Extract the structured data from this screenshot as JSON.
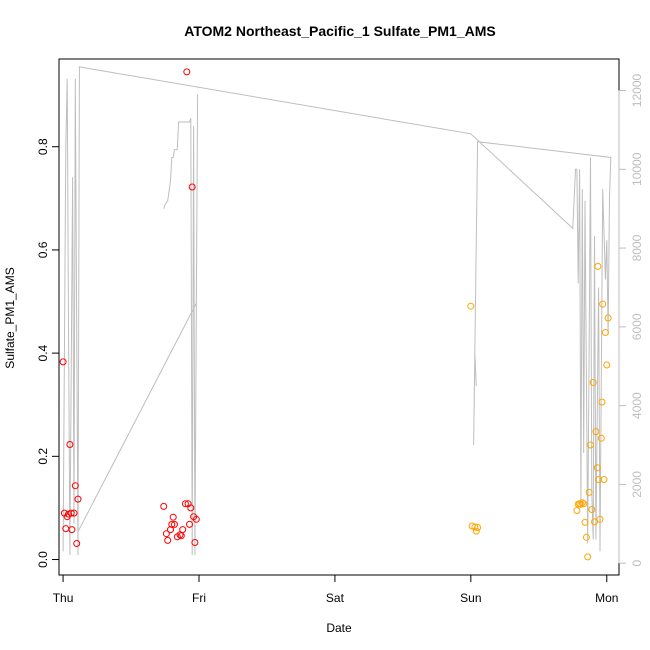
{
  "chart_data": {
    "type": "scatter",
    "title": "ATOM2 Northeast_Pacific_1 Sulfate_PM1_AMS",
    "xlabel": "Date",
    "ylabel": "Sulfate_PM1_AMS",
    "xlim": [
      -0.03,
      4.09
    ],
    "ylim": [
      -0.03,
      0.97
    ],
    "x_ticks": [
      {
        "value": 0,
        "label": "Thu"
      },
      {
        "value": 1,
        "label": "Fri"
      },
      {
        "value": 2,
        "label": "Sat"
      },
      {
        "value": 3,
        "label": "Sun"
      },
      {
        "value": 4,
        "label": "Mon"
      }
    ],
    "y_ticks": [
      0.0,
      0.2,
      0.4,
      0.6,
      0.8
    ],
    "y_tick_labels": [
      "0.0",
      "0.2",
      "0.4",
      "0.6",
      "0.8"
    ],
    "right_axis": {
      "ylim": [
        -300,
        12800
      ],
      "ticks": [
        0,
        2000,
        4000,
        6000,
        8000,
        10000,
        12000
      ],
      "tick_labels": [
        "0",
        "2000",
        "4000",
        "6000",
        "8000",
        "10000",
        "12000"
      ],
      "color": "#bebebe"
    },
    "series": [
      {
        "color": "#ff0000",
        "marker": "open-circle",
        "points": [
          [
            0.0,
            0.383
          ],
          [
            0.01,
            0.09
          ],
          [
            0.02,
            0.06
          ],
          [
            0.03,
            0.083
          ],
          [
            0.04,
            0.088
          ],
          [
            0.05,
            0.223
          ],
          [
            0.06,
            0.09
          ],
          [
            0.065,
            0.058
          ],
          [
            0.08,
            0.09
          ],
          [
            0.09,
            0.143
          ],
          [
            0.1,
            0.031
          ],
          [
            0.11,
            0.117
          ],
          [
            0.74,
            0.103
          ],
          [
            0.76,
            0.05
          ],
          [
            0.77,
            0.037
          ],
          [
            0.79,
            0.058
          ],
          [
            0.8,
            0.068
          ],
          [
            0.81,
            0.082
          ],
          [
            0.82,
            0.068
          ],
          [
            0.84,
            0.044
          ],
          [
            0.86,
            0.048
          ],
          [
            0.87,
            0.046
          ],
          [
            0.88,
            0.058
          ],
          [
            0.9,
            0.108
          ],
          [
            0.91,
            0.945
          ],
          [
            0.92,
            0.108
          ],
          [
            0.93,
            0.068
          ],
          [
            0.94,
            0.1
          ],
          [
            0.95,
            0.722
          ],
          [
            0.96,
            0.083
          ],
          [
            0.97,
            0.033
          ],
          [
            0.98,
            0.078
          ]
        ]
      },
      {
        "color": "#ffa500",
        "marker": "open-circle",
        "points": [
          [
            3.0,
            0.491
          ],
          [
            3.01,
            0.065
          ],
          [
            3.03,
            0.063
          ],
          [
            3.04,
            0.055
          ],
          [
            3.05,
            0.062
          ],
          [
            3.78,
            0.095
          ],
          [
            3.79,
            0.107
          ],
          [
            3.8,
            0.108
          ],
          [
            3.81,
            0.107
          ],
          [
            3.82,
            0.11
          ],
          [
            3.83,
            0.108
          ],
          [
            3.84,
            0.072
          ],
          [
            3.85,
            0.043
          ],
          [
            3.86,
            0.005
          ],
          [
            3.87,
            0.13
          ],
          [
            3.88,
            0.222
          ],
          [
            3.89,
            0.097
          ],
          [
            3.9,
            0.343
          ],
          [
            3.91,
            0.073
          ],
          [
            3.92,
            0.248
          ],
          [
            3.93,
            0.178
          ],
          [
            3.935,
            0.568
          ],
          [
            3.94,
            0.155
          ],
          [
            3.95,
            0.078
          ],
          [
            3.96,
            0.235
          ],
          [
            3.965,
            0.305
          ],
          [
            3.97,
            0.495
          ],
          [
            3.98,
            0.155
          ],
          [
            3.99,
            0.44
          ],
          [
            4.0,
            0.377
          ],
          [
            4.01,
            0.468
          ]
        ]
      },
      {
        "type": "line",
        "axis": "right",
        "color": "#bebebe",
        "points": [
          [
            0.0,
            300
          ],
          [
            0.02,
            10600
          ],
          [
            0.03,
            12300
          ],
          [
            0.04,
            6000
          ],
          [
            0.05,
            200
          ],
          [
            0.07,
            9800
          ],
          [
            0.08,
            1000
          ],
          [
            0.09,
            12300
          ],
          [
            0.11,
            200
          ],
          [
            0.12,
            12600
          ],
          [
            3.0,
            10900
          ],
          [
            3.75,
            8500
          ],
          [
            3.77,
            10000
          ],
          [
            3.78,
            10000
          ],
          [
            3.79,
            7100
          ],
          [
            3.8,
            10000
          ],
          [
            3.81,
            1500
          ],
          [
            3.82,
            9500
          ],
          [
            3.83,
            2800
          ],
          [
            3.84,
            9200
          ],
          [
            3.86,
            500
          ],
          [
            3.88,
            10300
          ],
          [
            3.89,
            1800
          ],
          [
            3.9,
            600
          ],
          [
            3.91,
            8300
          ],
          [
            3.92,
            600
          ],
          [
            3.94,
            7000
          ],
          [
            3.95,
            300
          ],
          [
            3.97,
            9500
          ],
          [
            3.99,
            7200
          ],
          [
            4.0,
            8200
          ],
          [
            4.01,
            5800
          ],
          [
            4.02,
            9300
          ],
          [
            4.03,
            10300
          ],
          [
            3.05,
            10700
          ],
          [
            3.02,
            3000
          ],
          [
            3.03,
            5300
          ],
          [
            3.04,
            4500
          ]
        ]
      },
      {
        "type": "line",
        "axis": "right",
        "color": "#bebebe",
        "points": [
          [
            0.11,
            800
          ],
          [
            0.98,
            6600
          ],
          [
            0.99,
            11900
          ],
          [
            0.97,
            200
          ],
          [
            0.96,
            11100
          ],
          [
            0.95,
            200
          ],
          [
            0.94,
            11300
          ],
          [
            0.93,
            11200
          ],
          [
            0.9,
            11200
          ],
          [
            0.85,
            11200
          ],
          [
            0.84,
            10500
          ],
          [
            0.82,
            10500
          ],
          [
            0.81,
            10300
          ],
          [
            0.8,
            10300
          ],
          [
            0.79,
            9700
          ],
          [
            0.77,
            9200
          ],
          [
            0.75,
            9100
          ],
          [
            0.74,
            9000
          ]
        ]
      }
    ]
  }
}
